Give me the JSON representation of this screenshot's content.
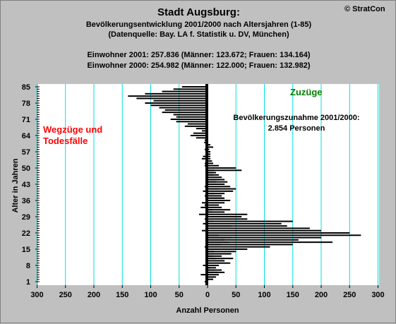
{
  "title": "Stadt Augsburg:",
  "subtitle_1": "Bevölkerungsentwicklung 2001/2000 nach Altersjahren (1-85)",
  "subtitle_2": "(Datenquelle: Bay. LA f. Statistik u. DV, München)",
  "info_1": "Einwohner 2001: 257.836  (Männer: 123.672; Frauen: 134.164)",
  "info_2": "Einwohner 2000: 254.982  (Männer: 122.000; Frauen: 132.982)",
  "copyright": "© StratCon",
  "colors": {
    "background": "#c0c0c0",
    "plot_background": "#ffffff",
    "grid": "#00e0e0",
    "bars": "#000000",
    "left_label": "#ff0000",
    "right_label": "#008000"
  },
  "chart_data": {
    "type": "bar",
    "orientation": "horizontal",
    "xlabel": "Anzahl Personen",
    "ylabel": "Alter in Jahren",
    "xlim": [
      -300,
      300
    ],
    "ylim": [
      1,
      85
    ],
    "x_ticks": [
      -300,
      -250,
      -200,
      -150,
      -100,
      -50,
      0,
      50,
      100,
      150,
      200,
      250,
      300
    ],
    "x_tick_labels": [
      "300",
      "250",
      "200",
      "150",
      "100",
      "50",
      "0",
      "50",
      "100",
      "150",
      "200",
      "250",
      "300"
    ],
    "y_ticks": [
      1,
      8,
      15,
      22,
      29,
      36,
      43,
      50,
      57,
      64,
      71,
      78,
      85
    ],
    "grid": true,
    "left_label": [
      "Wegzüge und",
      "Todesfälle"
    ],
    "right_label": "Zuzüge",
    "annotation": [
      "Bevölkerungszunahme 2001/2000:",
      "2.854 Personen"
    ],
    "series": [
      {
        "ages": [
          1,
          2,
          3,
          4,
          5,
          6,
          7,
          8,
          9,
          10,
          11,
          12,
          13,
          14,
          15,
          16,
          17,
          18,
          19,
          20,
          21,
          22,
          23,
          24,
          25,
          26,
          27,
          28,
          29,
          30,
          31,
          32,
          33,
          34,
          35,
          36,
          37,
          38,
          39,
          40,
          41,
          42,
          43,
          44,
          45,
          46,
          47,
          48,
          49,
          50,
          51,
          52,
          53,
          54,
          55,
          56,
          57,
          58,
          59,
          60,
          61,
          62,
          63,
          64,
          65,
          66,
          67,
          68,
          69,
          70,
          71,
          72,
          73,
          74,
          75,
          76,
          77,
          78,
          79,
          80,
          81,
          82,
          83,
          84,
          85
        ],
        "values": [
          -5,
          10,
          15,
          -12,
          18,
          12,
          5,
          -8,
          -2,
          2,
          15,
          10,
          42,
          12,
          20,
          -5,
          25,
          38,
          30,
          42,
          20,
          28,
          -10,
          -2,
          42,
          -8,
          10,
          -5,
          5,
          -15,
          8,
          8,
          -12,
          -5,
          -10,
          -3,
          28,
          -5,
          12,
          -8,
          20,
          -5,
          30,
          15,
          20,
          -3,
          10,
          8,
          12,
          8,
          -5,
          -5,
          -3,
          -10,
          -8,
          2,
          -3,
          -5,
          10,
          5,
          -6,
          -5,
          -20,
          -30,
          -25,
          -10,
          -20,
          -40,
          -35,
          -55,
          -65,
          -55,
          -60,
          -80,
          -75,
          -85,
          -100,
          -110,
          -95,
          -125,
          -140,
          -110,
          -80,
          -60,
          -45
        ],
        "positive_values": [
          0,
          0,
          12,
          20,
          30,
          25,
          15,
          20,
          40,
          30,
          45,
          25,
          40,
          50,
          70,
          110,
          150,
          220,
          160,
          200,
          270,
          250,
          200,
          180,
          140,
          130,
          150,
          70,
          60,
          70,
          30,
          40,
          25,
          20,
          30,
          40,
          30,
          25,
          30,
          45,
          50,
          40,
          30,
          35,
          30,
          25,
          20,
          15,
          60,
          50,
          20,
          10,
          8,
          5,
          5,
          5,
          5,
          3,
          2,
          2,
          0,
          0,
          0,
          0,
          0,
          0,
          0,
          0,
          0,
          0,
          0,
          0,
          0,
          0,
          0,
          0,
          0,
          0,
          0,
          0,
          0,
          0,
          0,
          0,
          0
        ]
      }
    ]
  }
}
